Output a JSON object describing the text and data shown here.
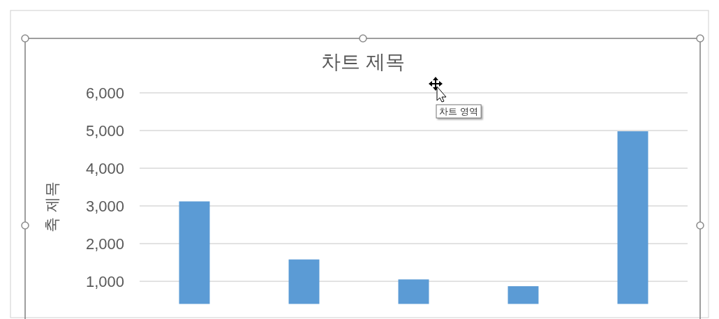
{
  "chart_data": {
    "type": "bar",
    "title": "차트 제목",
    "ylabel": "축 제목",
    "categories": [
      null,
      null,
      null,
      null,
      null
    ],
    "values": [
      3120,
      1580,
      1050,
      870,
      4980
    ],
    "color": "#5b9bd5",
    "ylim": [
      400,
      6000
    ],
    "yticks": [
      {
        "value": 1000,
        "label": "1,000"
      },
      {
        "value": 2000,
        "label": "2,000"
      },
      {
        "value": 3000,
        "label": "3,000"
      },
      {
        "value": 4000,
        "label": "4,000"
      },
      {
        "value": 5000,
        "label": "5,000"
      },
      {
        "value": 6000,
        "label": "6,000"
      }
    ],
    "grid": "y",
    "tick_labels": "y",
    "annotations": [
      "차트 영역"
    ]
  }
}
